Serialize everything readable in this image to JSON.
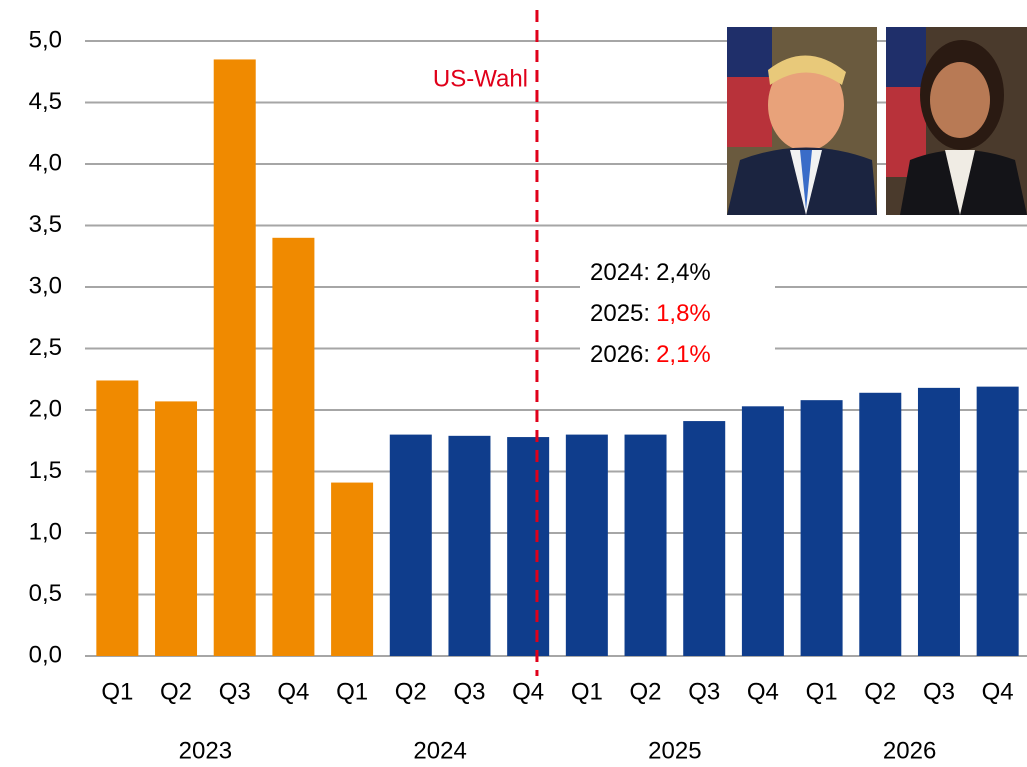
{
  "chart_data": {
    "type": "bar",
    "categories": [
      "Q1",
      "Q2",
      "Q3",
      "Q4",
      "Q1",
      "Q2",
      "Q3",
      "Q4",
      "Q1",
      "Q2",
      "Q3",
      "Q4",
      "Q1",
      "Q2",
      "Q3",
      "Q4"
    ],
    "values": [
      2.24,
      2.07,
      4.85,
      3.4,
      1.41,
      1.8,
      1.79,
      1.78,
      1.8,
      1.8,
      1.91,
      2.03,
      2.08,
      2.14,
      2.18,
      2.19
    ],
    "colors": [
      "#f08a00",
      "#f08a00",
      "#f08a00",
      "#f08a00",
      "#f08a00",
      "#0f3d8c",
      "#0f3d8c",
      "#0f3d8c",
      "#0f3d8c",
      "#0f3d8c",
      "#0f3d8c",
      "#0f3d8c",
      "#0f3d8c",
      "#0f3d8c",
      "#0f3d8c",
      "#0f3d8c"
    ],
    "x_groups": [
      {
        "label": "2023",
        "span": 4
      },
      {
        "label": "2024",
        "span": 4
      },
      {
        "label": "2025",
        "span": 4
      },
      {
        "label": "2026",
        "span": 4
      }
    ],
    "ylim": [
      0,
      5
    ],
    "yticks": [
      {
        "value": 0,
        "label": "0,0"
      },
      {
        "value": 0.5,
        "label": "0,5"
      },
      {
        "value": 1,
        "label": "1,0"
      },
      {
        "value": 1.5,
        "label": "1,5"
      },
      {
        "value": 2,
        "label": "2,0"
      },
      {
        "value": 2.5,
        "label": "2,5"
      },
      {
        "value": 3,
        "label": "3,0"
      },
      {
        "value": 3.5,
        "label": "3,5"
      },
      {
        "value": 4,
        "label": "4,0"
      },
      {
        "value": 4.5,
        "label": "4,5"
      },
      {
        "value": 5,
        "label": "5,0"
      }
    ],
    "grid": true,
    "marker_line": {
      "text": "US-Wahl",
      "color": "#e0001a"
    },
    "forecast_box": [
      {
        "label": "2024:",
        "value": "2,4%",
        "value_color": "#000000"
      },
      {
        "label": "2025:",
        "value": "1,8%",
        "value_color": "#ff0000"
      },
      {
        "label": "2026:",
        "value": "2,1%",
        "value_color": "#ff0000"
      }
    ]
  }
}
